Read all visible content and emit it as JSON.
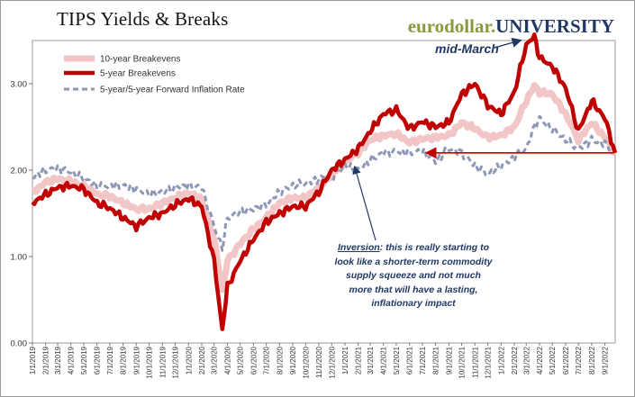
{
  "title": "TIPS Yields & Breaks",
  "brand": {
    "part1": "eurodollar.",
    "part2": "UNIVERSITY"
  },
  "colors": {
    "breakeven_10y": "#f2c6c6",
    "breakeven_5y": "#c00000",
    "forward_5y5y": "#8e97b6",
    "annotation": "#1f3864",
    "brand_green": "#8a9a3c",
    "brand_navy": "#1f3864"
  },
  "annotations": {
    "mid_march": "mid-March",
    "inversion_lead": "Inversion",
    "inversion_text": ": this is really starting to look like a shorter-term commodity supply squeeze and not much more that will have a lasting, inflationary impact"
  },
  "chart_data": {
    "type": "line",
    "title": "TIPS Yields & Breaks",
    "ylim": [
      0,
      3.5
    ],
    "yticks": [
      "0.00",
      "1.00",
      "2.00",
      "3.00"
    ],
    "grid": false,
    "legend_position": "top-left",
    "x_tick_labels": [
      "1/1/2019",
      "2/1/2019",
      "3/1/2019",
      "4/1/2019",
      "5/1/2019",
      "6/1/2019",
      "7/1/2019",
      "8/1/2019",
      "9/1/2019",
      "10/1/2019",
      "11/1/2019",
      "12/1/2019",
      "1/1/2020",
      "2/1/2020",
      "3/1/2020",
      "4/1/2020",
      "5/1/2020",
      "6/1/2020",
      "7/1/2020",
      "8/1/2020",
      "9/1/2020",
      "10/1/2020",
      "11/1/2020",
      "12/1/2020",
      "1/1/2021",
      "2/1/2021",
      "3/1/2021",
      "4/1/2021",
      "5/1/2021",
      "6/1/2021",
      "7/1/2021",
      "8/1/2021",
      "9/1/2021",
      "10/1/2021",
      "11/1/2021",
      "12/1/2021",
      "1/1/2022",
      "2/1/2022",
      "3/1/2022",
      "4/1/2022",
      "5/1/2022",
      "6/1/2022",
      "7/1/2022",
      "8/1/2022",
      "9/1/2022"
    ],
    "x": [
      "1/1/2019",
      "2/1/2019",
      "3/1/2019",
      "4/1/2019",
      "5/1/2019",
      "6/1/2019",
      "7/1/2019",
      "8/1/2019",
      "9/1/2019",
      "10/1/2019",
      "11/1/2019",
      "12/1/2019",
      "1/1/2020",
      "2/1/2020",
      "3/1/2020",
      "3/20/2020",
      "4/1/2020",
      "5/1/2020",
      "6/1/2020",
      "7/1/2020",
      "8/1/2020",
      "9/1/2020",
      "10/1/2020",
      "11/1/2020",
      "12/1/2020",
      "1/1/2021",
      "2/1/2021",
      "3/1/2021",
      "4/1/2021",
      "5/1/2021",
      "6/1/2021",
      "7/1/2021",
      "8/1/2021",
      "9/1/2021",
      "10/1/2021",
      "11/1/2021",
      "12/1/2021",
      "1/1/2022",
      "2/1/2022",
      "3/1/2022",
      "3/20/2022",
      "4/1/2022",
      "5/1/2022",
      "6/1/2022",
      "7/1/2022",
      "8/1/2022",
      "9/1/2022",
      "9/25/2022"
    ],
    "series": [
      {
        "name": "10-year Breakevens",
        "style": "solid-thin",
        "values": [
          1.74,
          1.86,
          1.9,
          1.87,
          1.82,
          1.72,
          1.7,
          1.62,
          1.55,
          1.55,
          1.62,
          1.68,
          1.74,
          1.66,
          1.2,
          0.6,
          0.95,
          1.15,
          1.32,
          1.45,
          1.62,
          1.68,
          1.68,
          1.8,
          1.95,
          2.1,
          2.2,
          2.35,
          2.4,
          2.42,
          2.32,
          2.36,
          2.38,
          2.4,
          2.55,
          2.48,
          2.38,
          2.4,
          2.5,
          2.8,
          2.98,
          2.9,
          2.88,
          2.65,
          2.35,
          2.55,
          2.38,
          2.2
        ]
      },
      {
        "name": "5-year Breakevens",
        "style": "solid-thick",
        "values": [
          1.62,
          1.72,
          1.8,
          1.82,
          1.78,
          1.62,
          1.56,
          1.45,
          1.35,
          1.45,
          1.5,
          1.6,
          1.67,
          1.58,
          0.95,
          0.15,
          0.65,
          0.95,
          1.2,
          1.4,
          1.5,
          1.58,
          1.58,
          1.75,
          2.0,
          2.12,
          2.25,
          2.45,
          2.65,
          2.7,
          2.48,
          2.56,
          2.5,
          2.55,
          2.88,
          3.0,
          2.75,
          2.65,
          2.9,
          3.45,
          3.55,
          3.3,
          3.2,
          2.95,
          2.45,
          2.8,
          2.6,
          2.2
        ]
      },
      {
        "name": "5-year/5-year Forward Inflation Rate",
        "style": "dashed",
        "values": [
          1.92,
          2.0,
          2.02,
          1.98,
          1.9,
          1.82,
          1.82,
          1.82,
          1.78,
          1.72,
          1.75,
          1.8,
          1.82,
          1.8,
          1.35,
          1.1,
          1.45,
          1.52,
          1.55,
          1.6,
          1.75,
          1.82,
          1.85,
          1.9,
          1.92,
          2.05,
          2.0,
          2.12,
          2.2,
          2.22,
          2.2,
          2.22,
          2.1,
          2.25,
          2.2,
          2.05,
          1.95,
          2.05,
          2.15,
          2.25,
          2.5,
          2.6,
          2.48,
          2.35,
          2.25,
          2.35,
          2.3,
          2.25
        ]
      }
    ],
    "reference_line": {
      "value": 2.2,
      "from": "7/1/2021",
      "to": "9/25/2022"
    }
  }
}
